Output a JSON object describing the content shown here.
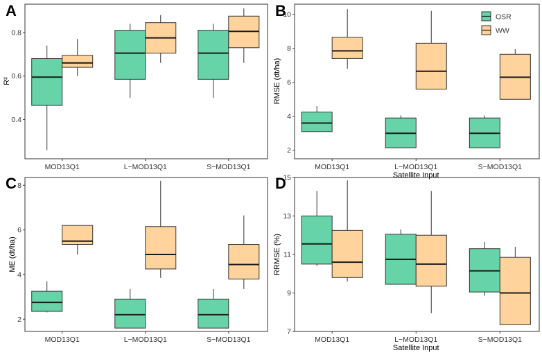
{
  "colors": {
    "OSR": "#66d4a8",
    "WW": "#ffd39b",
    "frame": "#333333",
    "median": "#1a1a1a"
  },
  "legend": [
    {
      "key": "OSR",
      "label": "OSR"
    },
    {
      "key": "WW",
      "label": "WW"
    }
  ],
  "chart_data": [
    {
      "panel": "A",
      "type": "box",
      "title": "",
      "xlabel": "",
      "ylabel": "R²",
      "ylim": [
        0.22,
        0.93
      ],
      "yticks": [
        0.4,
        0.6,
        0.8
      ],
      "ytick_labels": [
        "0.4",
        "0.6",
        "0.8"
      ],
      "categories": [
        "MOD13Q1",
        "L−MOD13Q1",
        "S−MOD13Q1"
      ],
      "series": [
        {
          "name": "OSR",
          "boxes": [
            {
              "min": 0.26,
              "q1": 0.465,
              "median": 0.595,
              "q3": 0.68,
              "max": 0.74
            },
            {
              "min": 0.5,
              "q1": 0.585,
              "median": 0.705,
              "q3": 0.81,
              "max": 0.84
            },
            {
              "min": 0.5,
              "q1": 0.585,
              "median": 0.705,
              "q3": 0.81,
              "max": 0.84
            }
          ]
        },
        {
          "name": "WW",
          "boxes": [
            {
              "min": 0.6,
              "q1": 0.64,
              "median": 0.66,
              "q3": 0.695,
              "max": 0.77
            },
            {
              "min": 0.66,
              "q1": 0.705,
              "median": 0.775,
              "q3": 0.845,
              "max": 0.88
            },
            {
              "min": 0.66,
              "q1": 0.73,
              "median": 0.805,
              "q3": 0.875,
              "max": 0.91
            }
          ]
        }
      ]
    },
    {
      "panel": "B",
      "type": "box",
      "title": "",
      "xlabel": "Satellite Input",
      "ylabel": "RMSE (dt/ha)",
      "ylim": [
        1.5,
        10.6
      ],
      "yticks": [
        2,
        4,
        6,
        8,
        10
      ],
      "ytick_labels": [
        "2",
        "4",
        "6",
        "8",
        "10"
      ],
      "categories": [
        "MOD13Q1",
        "L−MOD13Q1",
        "S−MOD13Q1"
      ],
      "series": [
        {
          "name": "OSR",
          "boxes": [
            {
              "min": 3.1,
              "q1": 3.1,
              "median": 3.6,
              "q3": 4.25,
              "max": 4.6
            },
            {
              "min": 2.15,
              "q1": 2.15,
              "median": 3.0,
              "q3": 3.9,
              "max": 4.05
            },
            {
              "min": 2.15,
              "q1": 2.15,
              "median": 3.0,
              "q3": 3.9,
              "max": 4.05
            }
          ]
        },
        {
          "name": "WW",
          "boxes": [
            {
              "min": 6.8,
              "q1": 7.4,
              "median": 7.85,
              "q3": 8.65,
              "max": 10.3
            },
            {
              "min": 5.6,
              "q1": 5.6,
              "median": 6.65,
              "q3": 8.3,
              "max": 10.2
            },
            {
              "min": 5.0,
              "q1": 5.0,
              "median": 6.3,
              "q3": 7.65,
              "max": 7.95
            }
          ]
        }
      ]
    },
    {
      "panel": "C",
      "type": "box",
      "title": "",
      "xlabel": "",
      "ylabel": "ME (dt/ha)",
      "ylim": [
        1.45,
        8.35
      ],
      "yticks": [
        2,
        4,
        6,
        8
      ],
      "ytick_labels": [
        "2",
        "4",
        "6",
        "8"
      ],
      "categories": [
        "MOD13Q1",
        "L−MOD13Q1",
        "S−MOD13Q1"
      ],
      "series": [
        {
          "name": "OSR",
          "boxes": [
            {
              "min": 2.3,
              "q1": 2.35,
              "median": 2.75,
              "q3": 3.25,
              "max": 3.7
            },
            {
              "min": 1.6,
              "q1": 1.6,
              "median": 2.2,
              "q3": 2.9,
              "max": 3.35
            },
            {
              "min": 1.6,
              "q1": 1.6,
              "median": 2.2,
              "q3": 2.9,
              "max": 3.35
            }
          ]
        },
        {
          "name": "WW",
          "boxes": [
            {
              "min": 4.9,
              "q1": 5.35,
              "median": 5.5,
              "q3": 6.2,
              "max": 6.2
            },
            {
              "min": 3.85,
              "q1": 4.25,
              "median": 4.9,
              "q3": 6.15,
              "max": 8.2
            },
            {
              "min": 3.35,
              "q1": 3.8,
              "median": 4.45,
              "q3": 5.35,
              "max": 6.65
            }
          ]
        }
      ]
    },
    {
      "panel": "D",
      "type": "box",
      "title": "",
      "xlabel": "Satellite Input",
      "ylabel": "RRMSE (%)",
      "ylim": [
        7.0,
        15.0
      ],
      "yticks": [
        7,
        9,
        11,
        13,
        15
      ],
      "ytick_labels": [
        "7",
        "9",
        "11",
        "13",
        "15"
      ],
      "categories": [
        "MOD13Q1",
        "L−MOD13Q1",
        "S−MOD13Q1"
      ],
      "series": [
        {
          "name": "OSR",
          "boxes": [
            {
              "min": 10.4,
              "q1": 10.5,
              "median": 11.55,
              "q3": 13.0,
              "max": 14.3
            },
            {
              "min": 9.45,
              "q1": 9.45,
              "median": 10.75,
              "q3": 12.05,
              "max": 12.3
            },
            {
              "min": 8.85,
              "q1": 9.05,
              "median": 10.15,
              "q3": 11.3,
              "max": 11.65
            }
          ]
        },
        {
          "name": "WW",
          "boxes": [
            {
              "min": 9.6,
              "q1": 9.8,
              "median": 10.6,
              "q3": 12.25,
              "max": 14.85
            },
            {
              "min": 7.95,
              "q1": 9.35,
              "median": 10.5,
              "q3": 12.0,
              "max": 14.3
            },
            {
              "min": 7.35,
              "q1": 7.35,
              "median": 9.0,
              "q3": 10.85,
              "max": 11.4
            }
          ]
        }
      ]
    }
  ]
}
